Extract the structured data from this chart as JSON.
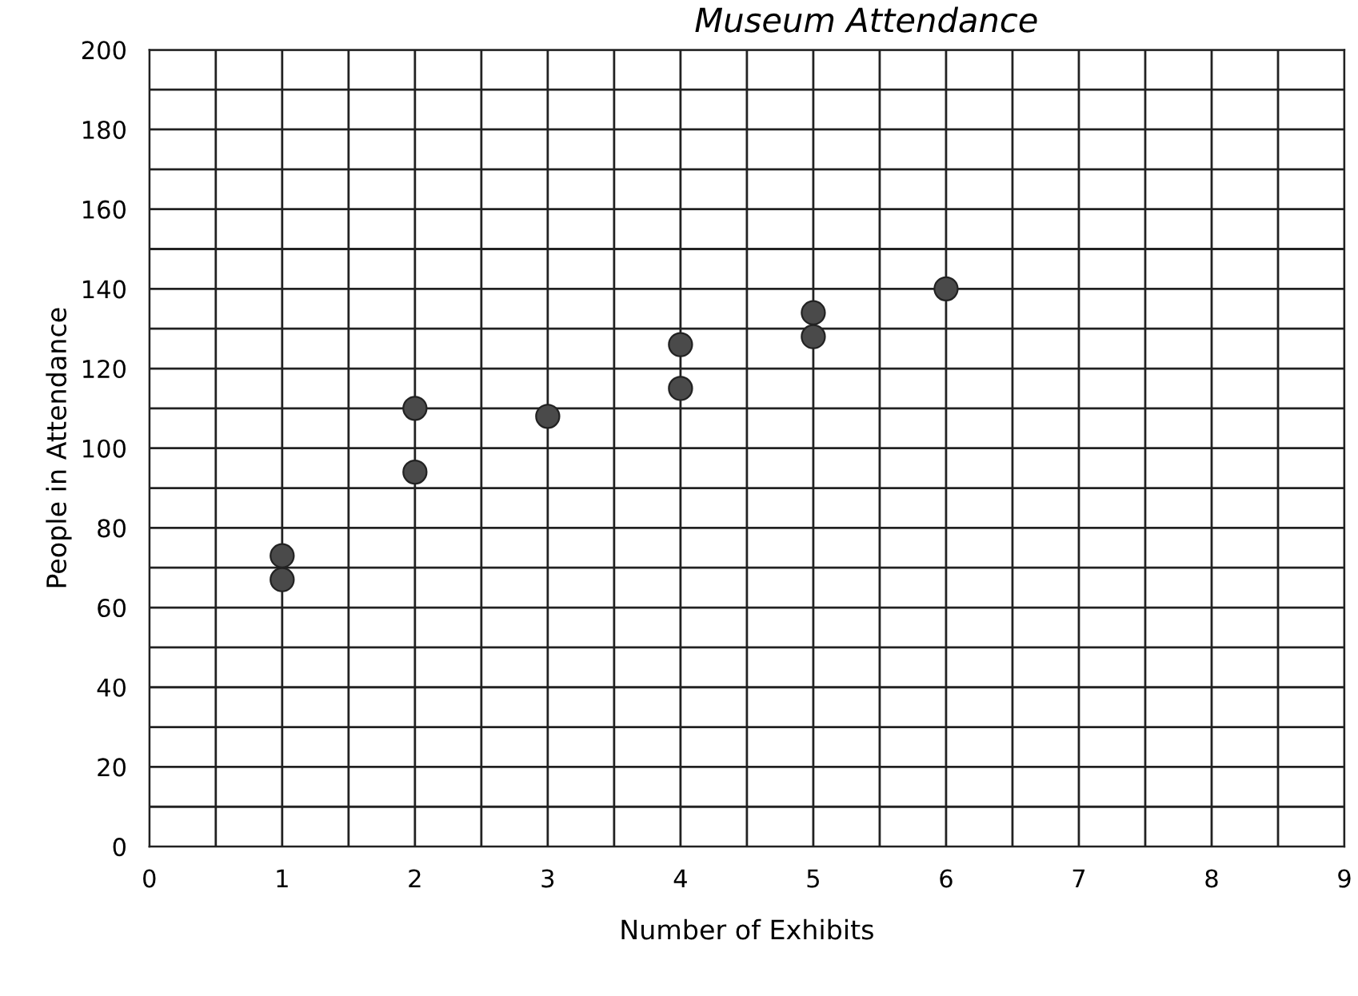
{
  "chart_data": {
    "type": "scatter",
    "title": "Museum Attendance",
    "xlabel": "Number of Exhibits",
    "ylabel": "People in Attendance",
    "x": [
      1,
      1,
      2,
      2,
      3,
      4,
      4,
      5,
      5,
      6
    ],
    "values": [
      73,
      67,
      110,
      94,
      108,
      126,
      115,
      134,
      128,
      140
    ],
    "color": "#4a4a4a",
    "marker": "circle",
    "xlim": [
      0,
      9
    ],
    "xticks": [
      0,
      {
        "value": 0.5,
        "label": null
      },
      1,
      {
        "value": 1.5,
        "label": null
      },
      2,
      {
        "value": 2.5,
        "label": null
      },
      3,
      {
        "value": 3.5,
        "label": null
      },
      4,
      {
        "value": 4.5,
        "label": null
      },
      5,
      {
        "value": 5.5,
        "label": null
      },
      6,
      {
        "value": 6.5,
        "label": null
      },
      7,
      {
        "value": 7.5,
        "label": null
      },
      8,
      {
        "value": 8.5,
        "label": null
      },
      9
    ],
    "ylim": [
      0,
      200
    ],
    "yticks": [
      0,
      {
        "value": 10,
        "label": null
      },
      20,
      {
        "value": 30,
        "label": null
      },
      40,
      {
        "value": 50,
        "label": null
      },
      60,
      {
        "value": 70,
        "label": null
      },
      80,
      {
        "value": 90,
        "label": null
      },
      100,
      {
        "value": 110,
        "label": null
      },
      120,
      {
        "value": 130,
        "label": null
      },
      140,
      {
        "value": 150,
        "label": null
      },
      160,
      {
        "value": 170,
        "label": null
      },
      180,
      {
        "value": 190,
        "label": null
      },
      200
    ],
    "grid": true
  }
}
